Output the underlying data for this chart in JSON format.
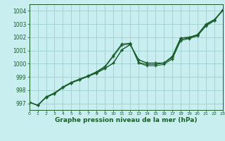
{
  "xlabel": "Graphe pression niveau de la mer (hPa)",
  "bg_color": "#c8eef0",
  "grid_color": "#9dcfcf",
  "line_color": "#1a5c2a",
  "xlim": [
    0,
    23
  ],
  "ylim": [
    996.5,
    1004.5
  ],
  "yticks": [
    997,
    998,
    999,
    1000,
    1001,
    1002,
    1003,
    1004
  ],
  "xticks": [
    0,
    1,
    2,
    3,
    4,
    5,
    6,
    7,
    8,
    9,
    10,
    11,
    12,
    13,
    14,
    15,
    16,
    17,
    18,
    19,
    20,
    21,
    22,
    23
  ],
  "series": [
    [
      997.1,
      996.85,
      997.45,
      997.75,
      998.2,
      998.55,
      998.8,
      999.05,
      999.3,
      999.65,
      1000.05,
      1001.05,
      1001.45,
      1000.3,
      1000.05,
      1000.05,
      1000.05,
      1000.55,
      1001.95,
      1002.0,
      1002.2,
      1003.0,
      1003.35,
      1004.05
    ],
    [
      997.1,
      996.85,
      997.45,
      997.75,
      998.2,
      998.55,
      998.8,
      999.05,
      999.3,
      999.65,
      1000.05,
      1001.05,
      1001.45,
      1000.3,
      1000.05,
      1000.05,
      1000.05,
      1000.55,
      1001.95,
      1002.0,
      1002.2,
      1002.95,
      1003.3,
      1004.0
    ],
    [
      997.1,
      996.85,
      997.45,
      997.75,
      998.2,
      998.55,
      998.8,
      999.05,
      999.35,
      999.75,
      1000.55,
      1001.4,
      1001.5,
      1000.1,
      999.95,
      999.95,
      1000.05,
      1000.45,
      1001.85,
      1001.95,
      1002.15,
      1002.9,
      1003.3,
      1004.05
    ],
    [
      997.1,
      996.85,
      997.5,
      997.8,
      998.25,
      998.6,
      998.85,
      999.1,
      999.4,
      999.8,
      1000.65,
      1001.5,
      1001.55,
      1000.05,
      999.85,
      999.85,
      999.95,
      1000.35,
      1001.75,
      1001.9,
      1002.1,
      1002.85,
      1003.25,
      1004.1
    ]
  ]
}
